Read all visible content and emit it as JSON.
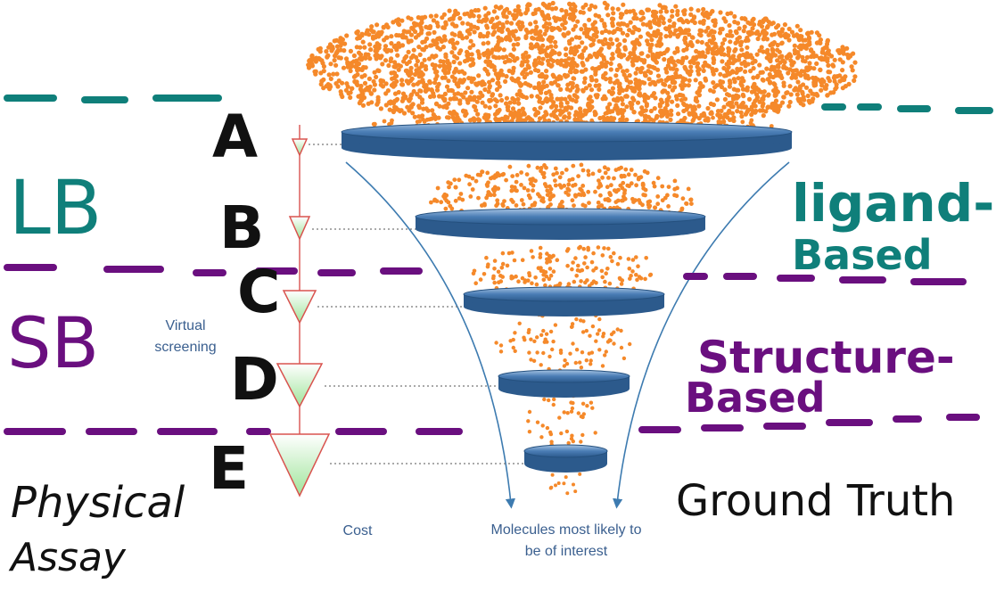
{
  "stage_letters": [
    "A",
    "B",
    "C",
    "D",
    "E"
  ],
  "left_labels": {
    "lb": "LB",
    "sb": "SB",
    "physical_line1": "Physical",
    "physical_line2": "Assay"
  },
  "right_labels": {
    "ligand_line1": "ligand-",
    "ligand_line2": "Based",
    "structure_line1": "Structure-",
    "structure_line2": "Based",
    "ground_truth": "Ground Truth"
  },
  "printed_labels": {
    "virtual_line1": "Virtual",
    "virtual_line2": "screening",
    "cost": "Cost",
    "molecules_line1": "Molecules most likely to",
    "molecules_line2": "be of interest"
  },
  "colors": {
    "teal": "#0f7f7a",
    "purple": "#6a0f7f",
    "particle": "#f5892a",
    "disc": "#3f6fa5",
    "arrow_blue": "#3d7bb0",
    "cost_red": "#d9534f",
    "triangle_fill": "#c9f2c2",
    "ink": "#111111",
    "label_blue": "#3a5f8f"
  }
}
